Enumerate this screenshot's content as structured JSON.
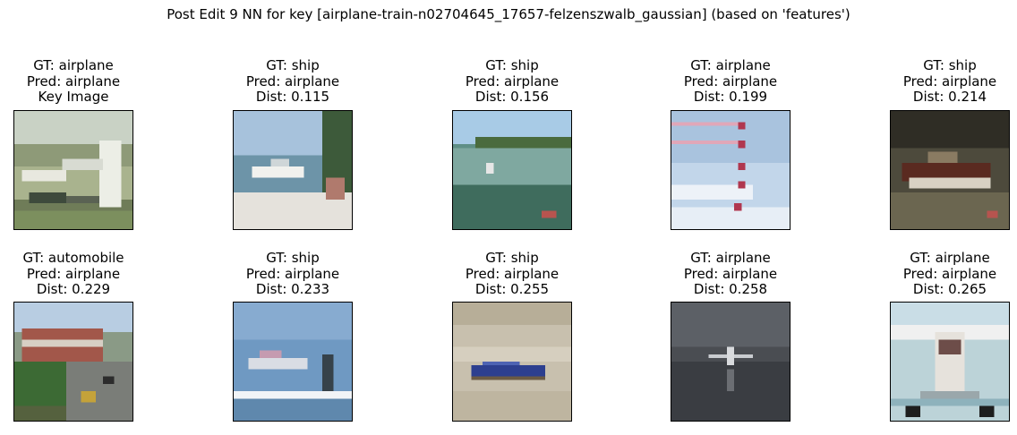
{
  "figure": {
    "title": "Post Edit 9 NN for key [airplane-train-n02704645_17657-felzenszwalb_gaussian] (based on 'features')"
  },
  "panels": [
    {
      "gt": "GT: airplane",
      "pred": "Pred: airplane",
      "extra": "Key Image",
      "scene": "key-image"
    },
    {
      "gt": "GT: ship",
      "pred": "Pred: airplane",
      "extra": "Dist: 0.115",
      "scene": "boat-on-beach"
    },
    {
      "gt": "GT: ship",
      "pred": "Pred: airplane",
      "extra": "Dist: 0.156",
      "scene": "green-lake"
    },
    {
      "gt": "GT: airplane",
      "pred": "Pred: airplane",
      "extra": "Dist: 0.199",
      "scene": "jet-formation"
    },
    {
      "gt": "GT: ship",
      "pred": "Pred: airplane",
      "extra": "Dist: 0.214",
      "scene": "boat-in-hangar"
    },
    {
      "gt": "GT: automobile",
      "pred": "Pred: airplane",
      "extra": "Dist: 0.229",
      "scene": "street-scene"
    },
    {
      "gt": "GT: ship",
      "pred": "Pred: airplane",
      "extra": "Dist: 0.233",
      "scene": "boat-at-dock"
    },
    {
      "gt": "GT: ship",
      "pred": "Pred: airplane",
      "extra": "Dist: 0.255",
      "scene": "blue-boat-sand"
    },
    {
      "gt": "GT: airplane",
      "pred": "Pred: airplane",
      "extra": "Dist: 0.258",
      "scene": "dark-water-plane"
    },
    {
      "gt": "GT: airplane",
      "pred": "Pred: airplane",
      "extra": "Dist: 0.265",
      "scene": "seaplane-front"
    }
  ]
}
